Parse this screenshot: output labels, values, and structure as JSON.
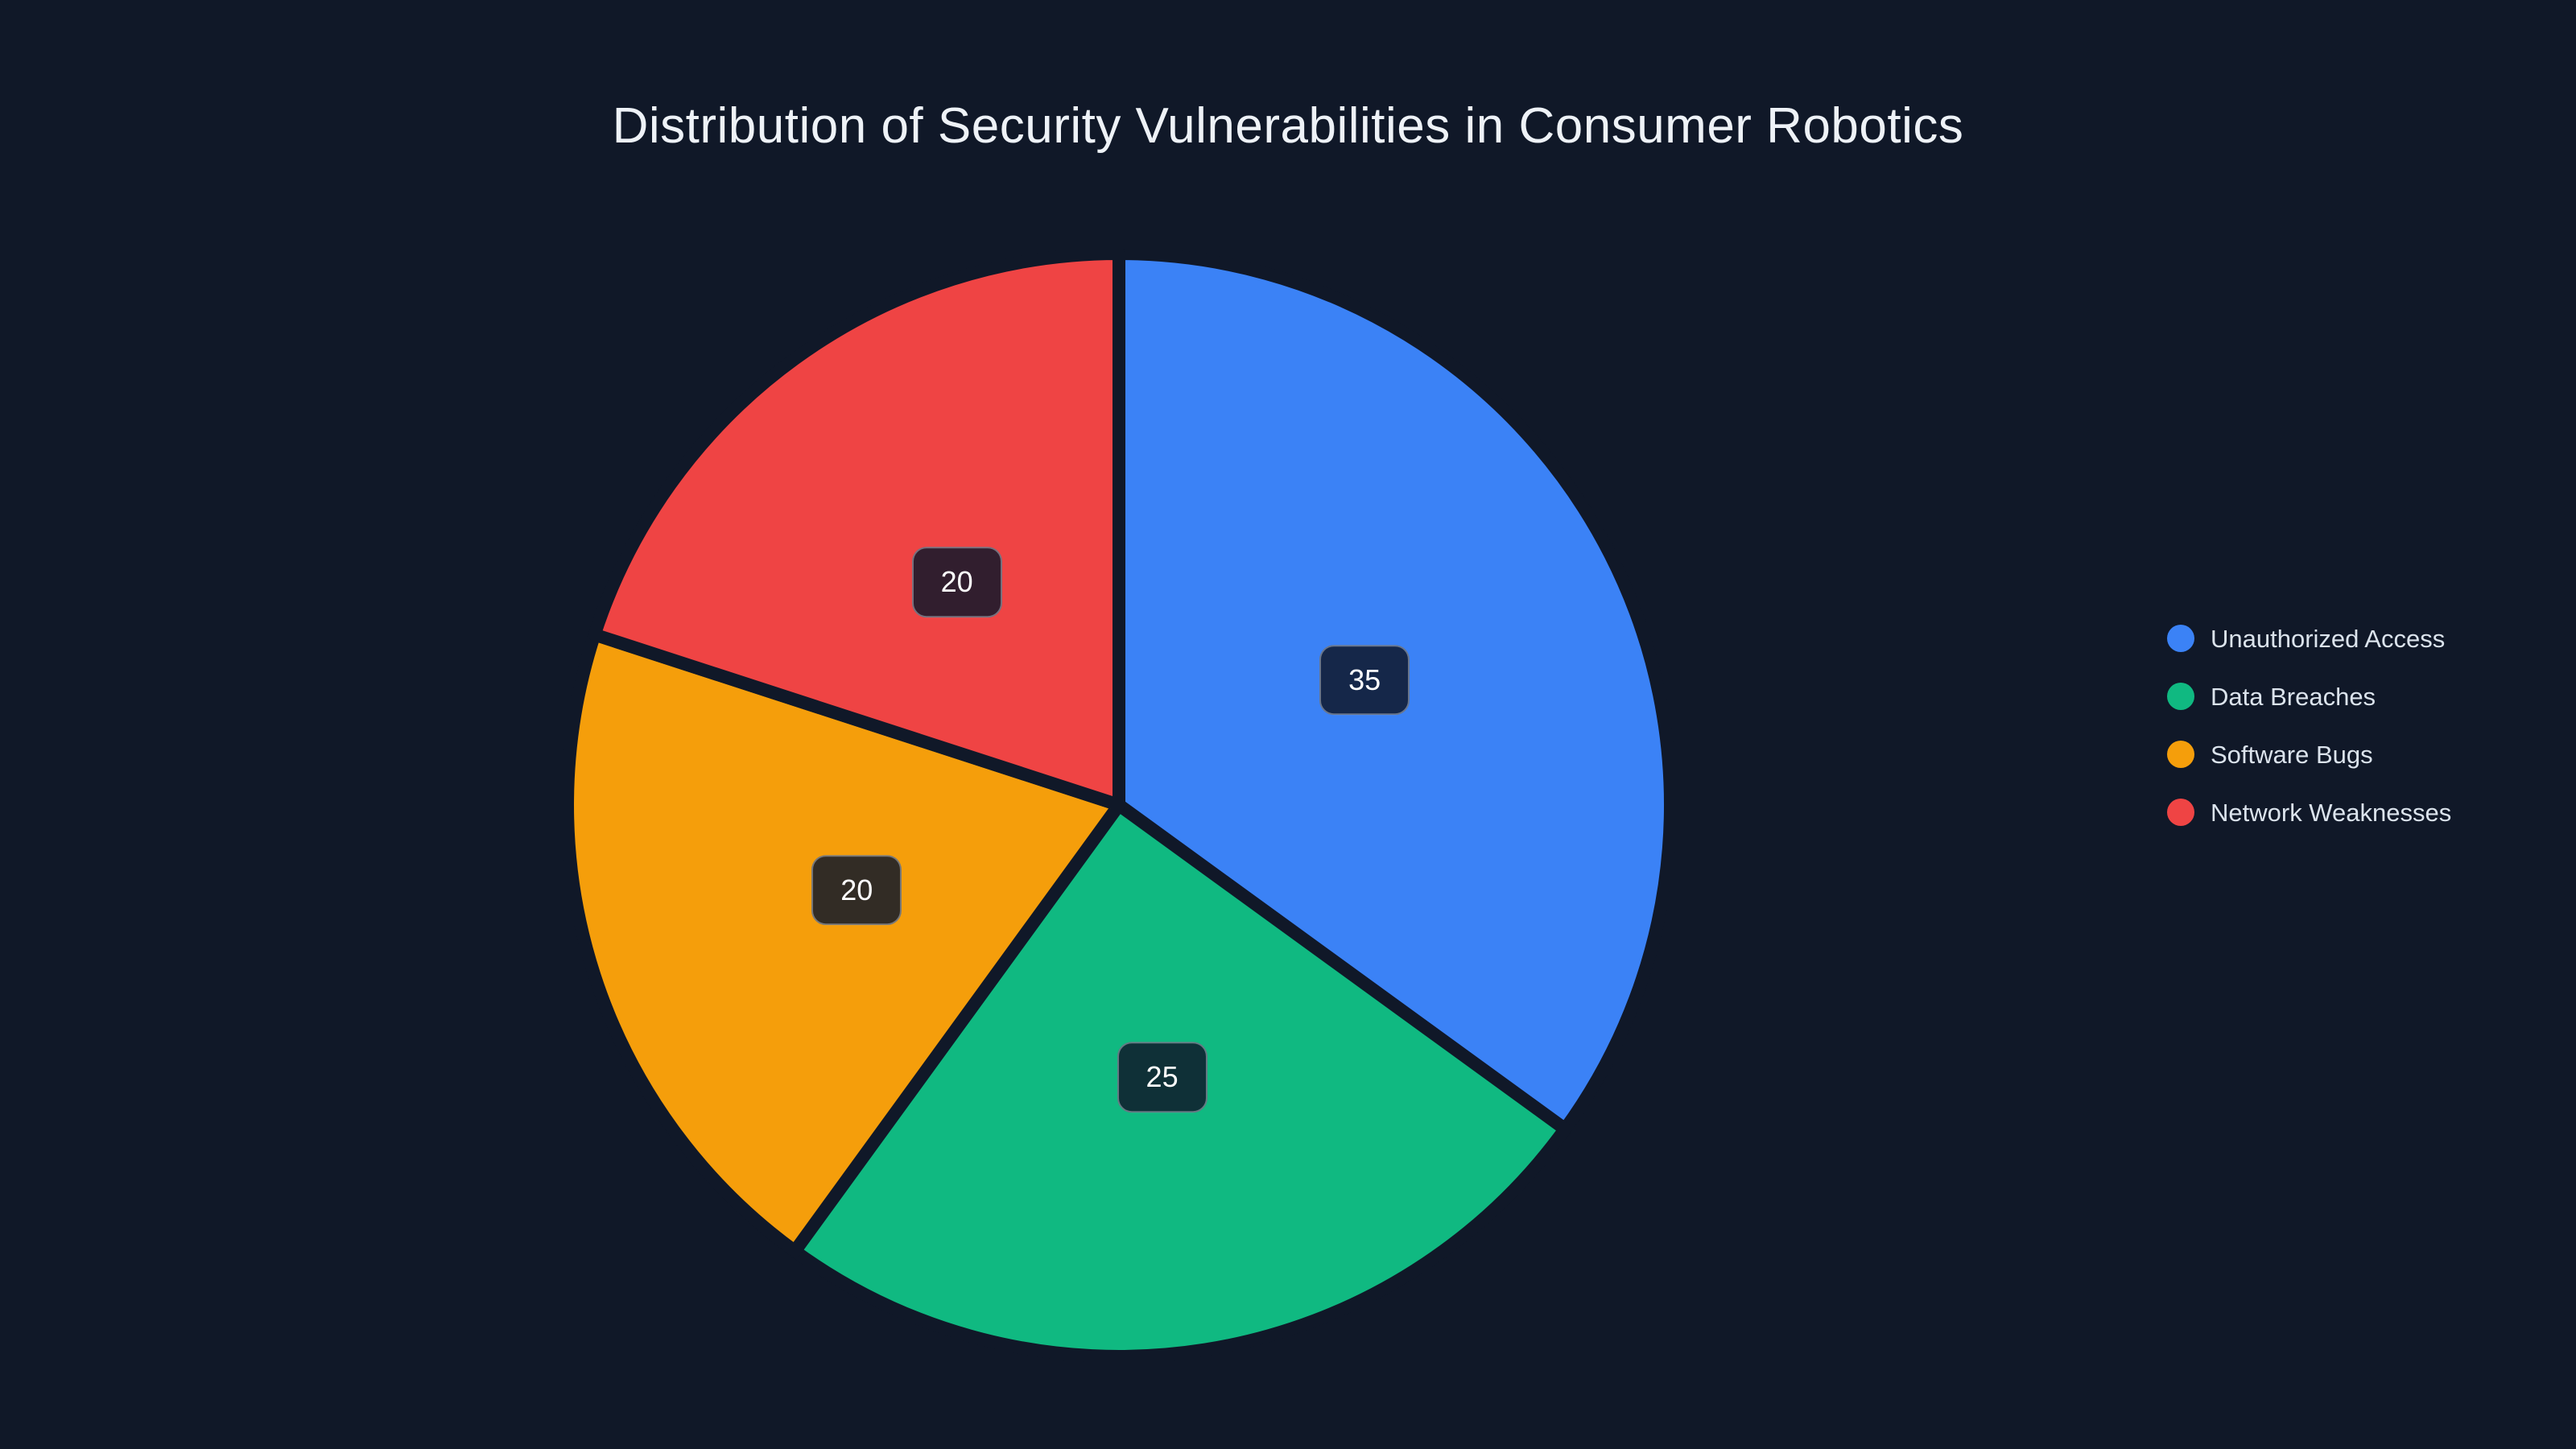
{
  "chart_data": {
    "type": "pie",
    "title": "Distribution of Security Vulnerabilities in Consumer Robotics",
    "categories": [
      "Unauthorized Access",
      "Data Breaches",
      "Software Bugs",
      "Network Weaknesses"
    ],
    "values": [
      35,
      25,
      20,
      20
    ],
    "value_labels": [
      "35",
      "25",
      "20",
      "20"
    ],
    "colors": [
      "#3b82f6",
      "#10b981",
      "#f59e0b",
      "#ef4444"
    ],
    "start_angle_deg": 0,
    "direction": "clockwise",
    "legend_position": "right",
    "background_color": "#101828",
    "title_color": "#eef2f7",
    "legend_text_color": "#dbe3ec",
    "value_label_style": {
      "bg": "rgba(15,23,42,0.85)",
      "border": "rgba(203,213,225,0.45)",
      "text_color": "#ffffff"
    },
    "slice_gap_color": "#101828"
  }
}
